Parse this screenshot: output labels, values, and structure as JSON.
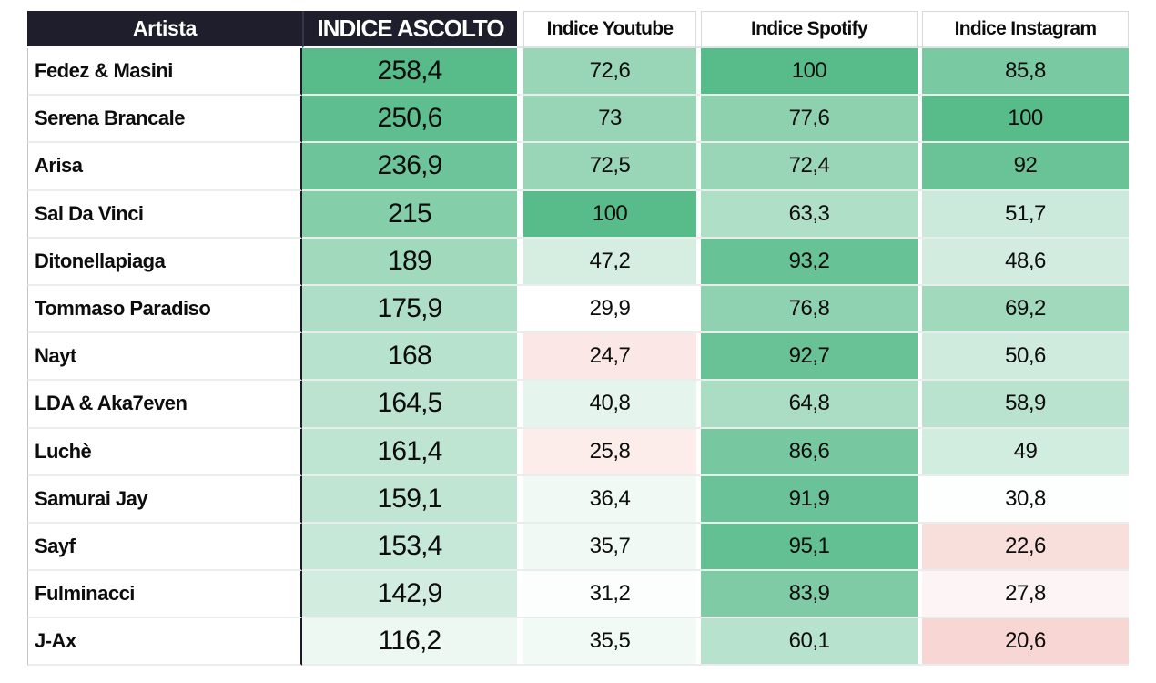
{
  "colors": {
    "header_bg": "#1e1e2c",
    "header_text": "#ffffff",
    "scale_green": "#57bb8a",
    "scale_white": "#ffffff",
    "scale_red": "#e67c73",
    "grid_line": "#e9edeb",
    "dark_divider": "#1b1b27",
    "cell_text": "#0d0d0d"
  },
  "table": {
    "columns": [
      {
        "key": "artista",
        "label": "Artista",
        "style": "dark"
      },
      {
        "key": "ascolto",
        "label": "INDICE ASCOLTO",
        "style": "dark"
      },
      {
        "key": "youtube",
        "label": "Indice Youtube",
        "style": "light"
      },
      {
        "key": "spotify",
        "label": "Indice Spotify",
        "style": "light"
      },
      {
        "key": "instagram",
        "label": "Indice Instagram",
        "style": "light"
      }
    ],
    "rows": [
      {
        "artista": "Fedez & Masini",
        "ascolto": "258,4",
        "youtube": "72,6",
        "spotify": "100",
        "instagram": "85,8"
      },
      {
        "artista": "Serena Brancale",
        "ascolto": "250,6",
        "youtube": "73",
        "spotify": "77,6",
        "instagram": "100"
      },
      {
        "artista": "Arisa",
        "ascolto": "236,9",
        "youtube": "72,5",
        "spotify": "72,4",
        "instagram": "92"
      },
      {
        "artista": "Sal Da Vinci",
        "ascolto": "215",
        "youtube": "100",
        "spotify": "63,3",
        "instagram": "51,7"
      },
      {
        "artista": "Ditonellapiaga",
        "ascolto": "189",
        "youtube": "47,2",
        "spotify": "93,2",
        "instagram": "48,6"
      },
      {
        "artista": "Tommaso Paradiso",
        "ascolto": "175,9",
        "youtube": "29,9",
        "spotify": "76,8",
        "instagram": "69,2"
      },
      {
        "artista": "Nayt",
        "ascolto": "168",
        "youtube": "24,7",
        "spotify": "92,7",
        "instagram": "50,6"
      },
      {
        "artista": "LDA & Aka7even",
        "ascolto": "164,5",
        "youtube": "40,8",
        "spotify": "64,8",
        "instagram": "58,9"
      },
      {
        "artista": "Luchè",
        "ascolto": "161,4",
        "youtube": "25,8",
        "spotify": "86,6",
        "instagram": "49"
      },
      {
        "artista": "Samurai Jay",
        "ascolto": "159,1",
        "youtube": "36,4",
        "spotify": "91,9",
        "instagram": "30,8"
      },
      {
        "artista": "Sayf",
        "ascolto": "153,4",
        "youtube": "35,7",
        "spotify": "95,1",
        "instagram": "22,6"
      },
      {
        "artista": "Fulminacci",
        "ascolto": "142,9",
        "youtube": "31,2",
        "spotify": "83,9",
        "instagram": "27,8"
      },
      {
        "artista": "J-Ax",
        "ascolto": "116,2",
        "youtube": "35,5",
        "spotify": "60,1",
        "instagram": "20,6"
      }
    ]
  },
  "color_scale": {
    "ascolto": {
      "white_at": 100,
      "green_at": 258.4
    },
    "sub": {
      "red_at": 0,
      "white_at": 30,
      "green_at": 100
    }
  },
  "chart_data": {
    "type": "heatmap",
    "title": "",
    "row_label_header": "Artista",
    "rows": [
      "Fedez & Masini",
      "Serena Brancale",
      "Arisa",
      "Sal Da Vinci",
      "Ditonellapiaga",
      "Tommaso Paradiso",
      "Nayt",
      "LDA & Aka7even",
      "Luchè",
      "Samurai Jay",
      "Sayf",
      "Fulminacci",
      "J-Ax"
    ],
    "columns": [
      "INDICE ASCOLTO",
      "Indice Youtube",
      "Indice Spotify",
      "Indice Instagram"
    ],
    "values": [
      [
        258.4,
        72.6,
        100,
        85.8
      ],
      [
        250.6,
        73,
        77.6,
        100
      ],
      [
        236.9,
        72.5,
        72.4,
        92
      ],
      [
        215,
        100,
        63.3,
        51.7
      ],
      [
        189,
        47.2,
        93.2,
        48.6
      ],
      [
        175.9,
        29.9,
        76.8,
        69.2
      ],
      [
        168,
        24.7,
        92.7,
        50.6
      ],
      [
        164.5,
        40.8,
        64.8,
        58.9
      ],
      [
        161.4,
        25.8,
        86.6,
        49
      ],
      [
        159.1,
        36.4,
        91.9,
        30.8
      ],
      [
        153.4,
        35.7,
        95.1,
        22.6
      ],
      [
        142.9,
        31.2,
        83.9,
        27.8
      ],
      [
        116.2,
        35.5,
        60.1,
        20.6
      ]
    ],
    "legend": "none",
    "color_scale_note": "red-white-green conditional formatting; low values pink, high values green (#57bb8a)"
  }
}
